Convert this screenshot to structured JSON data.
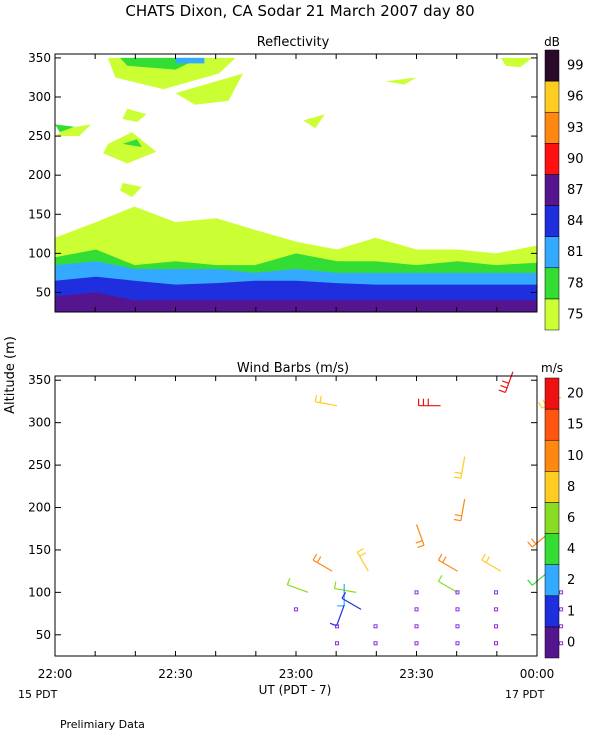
{
  "title": "CHATS Dixon, CA   Sodar   21 March 2007   day   80",
  "footer_note": "Prelimiary Data",
  "shared_axes": {
    "ylabel": "Altitude (m)",
    "xlabel": "UT   (PDT - 7)",
    "x_ticks": [
      "22:00",
      "22:30",
      "23:00",
      "23:30",
      "00:00"
    ],
    "x_tick_hours": [
      22,
      22.5,
      23,
      23.5,
      24
    ],
    "xlim_hours": [
      22,
      24
    ],
    "start_day_label": "15 PDT",
    "end_day_label": "17 PDT"
  },
  "chart_data": [
    {
      "type": "heatmap",
      "title": "Reflectivity",
      "ylim": [
        25,
        355
      ],
      "y_ticks": [
        50,
        100,
        150,
        200,
        250,
        300,
        350
      ],
      "colorbar": {
        "unit": "dB",
        "levels": [
          75,
          78,
          81,
          84,
          87,
          90,
          93,
          96,
          99
        ],
        "colors": [
          "#ccff33",
          "#33dd33",
          "#33aaff",
          "#1f2fdd",
          "#55158f",
          "#ff1111",
          "#ff8811",
          "#ffcc22",
          "#2a0a2a"
        ]
      },
      "x_hours": [
        22,
        22.17,
        22.33,
        22.5,
        22.67,
        22.83,
        23,
        23.17,
        23.33,
        23.5,
        23.67,
        23.83,
        24
      ],
      "contours": [
        {
          "level": 75,
          "top_m": [
            120,
            140,
            160,
            140,
            145,
            130,
            115,
            105,
            120,
            105,
            105,
            100,
            110
          ]
        },
        {
          "level": 78,
          "top_m": [
            95,
            105,
            85,
            90,
            85,
            85,
            100,
            90,
            90,
            85,
            90,
            85,
            88
          ]
        },
        {
          "level": 81,
          "top_m": [
            85,
            90,
            80,
            80,
            80,
            75,
            80,
            75,
            75,
            75,
            75,
            75,
            75
          ]
        },
        {
          "level": 84,
          "top_m": [
            65,
            70,
            65,
            60,
            62,
            65,
            65,
            62,
            60,
            60,
            60,
            60,
            60
          ]
        },
        {
          "level": 87,
          "top_m": [
            45,
            50,
            40,
            40,
            40,
            40,
            40,
            40,
            40,
            40,
            40,
            40,
            40
          ]
        }
      ],
      "upper_echo_m": [
        260,
        350
      ]
    },
    {
      "type": "scatter",
      "title": "Wind Barbs (m/s)",
      "ylim": [
        25,
        355
      ],
      "y_ticks": [
        50,
        100,
        150,
        200,
        250,
        300,
        350
      ],
      "colorbar": {
        "unit": "m/s",
        "levels": [
          0,
          1,
          2,
          4,
          6,
          8,
          10,
          15,
          20
        ],
        "colors": [
          "#55158f",
          "#1f2fdd",
          "#33aaff",
          "#33dd33",
          "#88dd22",
          "#ffcc22",
          "#ff8811",
          "#ff5511",
          "#ee1111"
        ]
      },
      "barbs": [
        {
          "t": 23.17,
          "alt": 320,
          "speed": 8,
          "dir": 280
        },
        {
          "t": 23.6,
          "alt": 320,
          "speed": 20,
          "dir": 270
        },
        {
          "t": 23.9,
          "alt": 360,
          "speed": 20,
          "dir": 200
        },
        {
          "t": 24.1,
          "alt": 330,
          "speed": 8,
          "dir": 240
        },
        {
          "t": 23.7,
          "alt": 260,
          "speed": 8,
          "dir": 190
        },
        {
          "t": 23.7,
          "alt": 210,
          "speed": 10,
          "dir": 190
        },
        {
          "t": 23.5,
          "alt": 180,
          "speed": 10,
          "dir": 160
        },
        {
          "t": 24.05,
          "alt": 170,
          "speed": 10,
          "dir": 230
        },
        {
          "t": 23.15,
          "alt": 125,
          "speed": 10,
          "dir": 300
        },
        {
          "t": 23.3,
          "alt": 125,
          "speed": 8,
          "dir": 330
        },
        {
          "t": 23.67,
          "alt": 125,
          "speed": 10,
          "dir": 300
        },
        {
          "t": 23.85,
          "alt": 125,
          "speed": 8,
          "dir": 300
        },
        {
          "t": 24.05,
          "alt": 125,
          "speed": 4,
          "dir": 230
        },
        {
          "t": 23.05,
          "alt": 100,
          "speed": 6,
          "dir": 290
        },
        {
          "t": 23.25,
          "alt": 100,
          "speed": 6,
          "dir": 280
        },
        {
          "t": 23.67,
          "alt": 100,
          "speed": 6,
          "dir": 300
        },
        {
          "t": 23.2,
          "alt": 110,
          "speed": 2,
          "dir": 180
        },
        {
          "t": 23.2,
          "alt": 85,
          "speed": 1,
          "dir": 200
        },
        {
          "t": 23.27,
          "alt": 80,
          "speed": 1,
          "dir": 300
        }
      ],
      "calm_points": [
        {
          "t": 23.5,
          "alt": 100
        },
        {
          "t": 23.67,
          "alt": 100
        },
        {
          "t": 23.83,
          "alt": 100
        },
        {
          "t": 24.1,
          "alt": 100
        },
        {
          "t": 23.0,
          "alt": 80
        },
        {
          "t": 23.5,
          "alt": 80
        },
        {
          "t": 23.67,
          "alt": 80
        },
        {
          "t": 23.83,
          "alt": 80
        },
        {
          "t": 24.1,
          "alt": 80
        },
        {
          "t": 23.17,
          "alt": 60
        },
        {
          "t": 23.33,
          "alt": 60
        },
        {
          "t": 23.5,
          "alt": 60
        },
        {
          "t": 23.67,
          "alt": 60
        },
        {
          "t": 23.83,
          "alt": 60
        },
        {
          "t": 24.1,
          "alt": 60
        },
        {
          "t": 23.17,
          "alt": 40
        },
        {
          "t": 23.33,
          "alt": 40
        },
        {
          "t": 23.5,
          "alt": 40
        },
        {
          "t": 23.67,
          "alt": 40
        },
        {
          "t": 23.83,
          "alt": 40
        },
        {
          "t": 24.1,
          "alt": 40
        }
      ]
    }
  ]
}
